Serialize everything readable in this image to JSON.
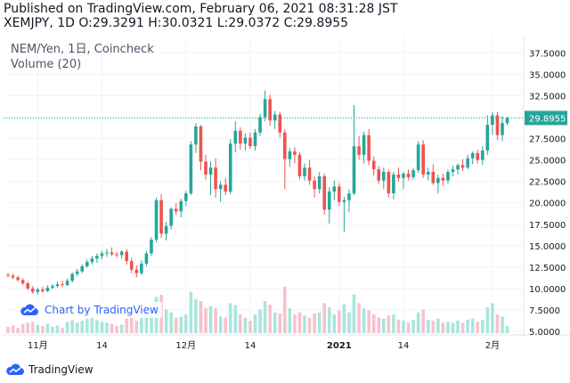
{
  "header": {
    "line1": "Published on TradingView.com, February 06, 2021 08:31:28 JST",
    "line2": "XEMJPY, 1D O:29.3291 H:30.0321 L:29.0372 C:29.8955"
  },
  "legend": {
    "title": "NEM/Yen, 1日, Coincheck",
    "volume": "Volume (20)"
  },
  "watermark": {
    "text": "Chart by TradingView"
  },
  "footer": {
    "brand": "TradingView"
  },
  "colors": {
    "up": "#26a69a",
    "down": "#ef5350",
    "upVol": "#a8e6dd",
    "downVol": "#f7c2cc",
    "lastLine": "#26a69a"
  },
  "chart_data": {
    "type": "candlestick",
    "title": "NEM/Yen, 1日, Coincheck",
    "ylim": [
      4.8,
      39.5
    ],
    "y_ticks": [
      "37.5000",
      "35.0000",
      "32.5000",
      "30.0000",
      "27.5000",
      "25.0000",
      "22.5000",
      "20.0000",
      "17.5000",
      "15.0000",
      "12.5000",
      "10.0000",
      "7.5000",
      "5.0000"
    ],
    "x_labels": [
      {
        "label": "11月",
        "index": 6
      },
      {
        "label": "14",
        "index": 19
      },
      {
        "label": "12月",
        "index": 36
      },
      {
        "label": "14",
        "index": 49
      },
      {
        "label": "2021",
        "index": 67
      },
      {
        "label": "14",
        "index": 80
      },
      {
        "label": "2月",
        "index": 98
      }
    ],
    "last_price": "29.8955",
    "last_value": 29.8955,
    "candles": [
      [
        11.6,
        11.8,
        11.3,
        11.5,
        0.12
      ],
      [
        11.5,
        11.7,
        11.1,
        11.3,
        0.15
      ],
      [
        11.3,
        11.5,
        10.8,
        11.0,
        0.1
      ],
      [
        11.0,
        11.2,
        10.4,
        10.6,
        0.18
      ],
      [
        10.6,
        10.8,
        9.8,
        10.0,
        0.2
      ],
      [
        10.0,
        10.3,
        9.4,
        9.6,
        0.22
      ],
      [
        9.6,
        10.1,
        9.3,
        9.9,
        0.16
      ],
      [
        9.9,
        10.2,
        9.5,
        9.7,
        0.14
      ],
      [
        9.7,
        10.4,
        9.6,
        10.1,
        0.18
      ],
      [
        10.1,
        10.5,
        9.9,
        10.3,
        0.12
      ],
      [
        10.3,
        10.8,
        10.1,
        10.5,
        0.15
      ],
      [
        10.5,
        10.9,
        10.2,
        10.4,
        0.1
      ],
      [
        10.4,
        11.2,
        10.3,
        10.9,
        0.22
      ],
      [
        10.9,
        11.9,
        10.7,
        11.7,
        0.25
      ],
      [
        11.7,
        12.3,
        11.4,
        12.0,
        0.2
      ],
      [
        12.0,
        12.8,
        11.8,
        12.6,
        0.24
      ],
      [
        12.6,
        13.4,
        12.4,
        13.1,
        0.28
      ],
      [
        13.1,
        13.8,
        12.8,
        13.5,
        0.3
      ],
      [
        13.5,
        14.1,
        13.0,
        13.8,
        0.25
      ],
      [
        13.8,
        14.4,
        13.4,
        14.1,
        0.22
      ],
      [
        14.1,
        14.6,
        13.7,
        14.2,
        0.2
      ],
      [
        14.2,
        14.8,
        13.8,
        14.0,
        0.18
      ],
      [
        14.0,
        14.3,
        13.6,
        13.9,
        0.14
      ],
      [
        13.9,
        14.5,
        13.5,
        14.3,
        0.16
      ],
      [
        14.3,
        14.6,
        12.8,
        13.2,
        0.28
      ],
      [
        13.2,
        13.6,
        11.8,
        12.2,
        0.32
      ],
      [
        12.2,
        12.7,
        11.3,
        11.8,
        0.24
      ],
      [
        11.8,
        13.3,
        11.6,
        12.9,
        0.3
      ],
      [
        12.9,
        14.4,
        12.6,
        14.1,
        0.38
      ],
      [
        14.1,
        16.0,
        13.8,
        15.7,
        0.48
      ],
      [
        15.7,
        20.6,
        15.4,
        20.3,
        0.7
      ],
      [
        20.3,
        21.0,
        15.9,
        16.4,
        0.74
      ],
      [
        16.4,
        17.8,
        15.6,
        17.3,
        0.46
      ],
      [
        17.3,
        19.5,
        16.9,
        19.3,
        0.4
      ],
      [
        19.3,
        20.0,
        18.6,
        19.0,
        0.3
      ],
      [
        19.0,
        20.5,
        18.3,
        20.2,
        0.32
      ],
      [
        20.2,
        21.4,
        19.6,
        21.1,
        0.36
      ],
      [
        21.1,
        27.2,
        20.9,
        26.8,
        0.8
      ],
      [
        26.8,
        29.3,
        25.8,
        28.9,
        0.66
      ],
      [
        28.9,
        29.1,
        23.8,
        24.8,
        0.62
      ],
      [
        24.8,
        25.6,
        22.7,
        23.3,
        0.48
      ],
      [
        23.3,
        24.8,
        20.9,
        24.1,
        0.52
      ],
      [
        24.1,
        25.2,
        20.6,
        21.6,
        0.48
      ],
      [
        21.6,
        22.5,
        20.1,
        22.1,
        0.32
      ],
      [
        22.1,
        22.9,
        20.9,
        21.3,
        0.3
      ],
      [
        21.3,
        27.4,
        21.0,
        26.9,
        0.58
      ],
      [
        26.9,
        29.5,
        25.9,
        28.4,
        0.54
      ],
      [
        28.4,
        28.8,
        26.2,
        26.9,
        0.36
      ],
      [
        26.9,
        28.1,
        26.1,
        27.6,
        0.3
      ],
      [
        27.6,
        28.2,
        26.3,
        26.6,
        0.24
      ],
      [
        26.6,
        28.6,
        26.1,
        28.2,
        0.36
      ],
      [
        28.2,
        30.4,
        27.8,
        30.0,
        0.46
      ],
      [
        30.0,
        33.1,
        29.5,
        32.1,
        0.62
      ],
      [
        32.1,
        32.6,
        29.0,
        29.6,
        0.55
      ],
      [
        29.6,
        30.7,
        28.6,
        30.3,
        0.4
      ],
      [
        30.3,
        30.6,
        27.6,
        28.2,
        0.38
      ],
      [
        28.2,
        28.6,
        21.6,
        25.1,
        0.9
      ],
      [
        25.1,
        26.4,
        24.2,
        26.0,
        0.48
      ],
      [
        26.0,
        26.5,
        24.6,
        25.6,
        0.36
      ],
      [
        25.6,
        25.9,
        22.7,
        23.1,
        0.4
      ],
      [
        23.1,
        24.6,
        22.6,
        24.1,
        0.34
      ],
      [
        24.1,
        25.0,
        22.1,
        22.6,
        0.3
      ],
      [
        22.6,
        23.1,
        20.6,
        21.6,
        0.38
      ],
      [
        21.6,
        23.6,
        21.1,
        23.1,
        0.4
      ],
      [
        23.1,
        23.4,
        18.6,
        19.2,
        0.58
      ],
      [
        19.2,
        21.8,
        17.6,
        21.3,
        0.5
      ],
      [
        21.3,
        22.6,
        20.3,
        21.9,
        0.36
      ],
      [
        21.9,
        22.3,
        19.6,
        20.1,
        0.44
      ],
      [
        20.1,
        20.7,
        16.6,
        20.3,
        0.56
      ],
      [
        20.3,
        21.6,
        18.9,
        21.1,
        0.4
      ],
      [
        21.1,
        31.4,
        20.9,
        26.6,
        0.75
      ],
      [
        26.6,
        27.8,
        25.0,
        25.6,
        0.58
      ],
      [
        25.6,
        28.3,
        24.6,
        27.9,
        0.48
      ],
      [
        27.9,
        28.6,
        24.4,
        24.9,
        0.44
      ],
      [
        24.9,
        25.4,
        23.2,
        23.9,
        0.36
      ],
      [
        23.9,
        24.3,
        22.2,
        22.6,
        0.3
      ],
      [
        22.6,
        24.1,
        21.6,
        23.6,
        0.28
      ],
      [
        23.6,
        23.9,
        20.6,
        21.1,
        0.34
      ],
      [
        21.1,
        23.6,
        20.4,
        23.3,
        0.36
      ],
      [
        23.3,
        24.1,
        22.5,
        22.9,
        0.26
      ],
      [
        22.9,
        23.6,
        21.6,
        23.4,
        0.24
      ],
      [
        23.4,
        23.9,
        22.6,
        23.0,
        0.2
      ],
      [
        23.0,
        24.1,
        22.7,
        23.8,
        0.26
      ],
      [
        23.8,
        27.2,
        23.5,
        26.8,
        0.4
      ],
      [
        26.8,
        27.3,
        22.9,
        23.3,
        0.46
      ],
      [
        23.3,
        24.1,
        22.6,
        23.6,
        0.26
      ],
      [
        23.6,
        24.5,
        22.1,
        22.3,
        0.24
      ],
      [
        22.3,
        23.3,
        21.1,
        22.9,
        0.28
      ],
      [
        22.9,
        23.4,
        22.0,
        22.6,
        0.2
      ],
      [
        22.6,
        23.9,
        22.2,
        23.6,
        0.22
      ],
      [
        23.6,
        24.3,
        23.1,
        23.9,
        0.2
      ],
      [
        23.9,
        24.6,
        23.3,
        24.4,
        0.24
      ],
      [
        24.4,
        25.1,
        23.7,
        24.1,
        0.2
      ],
      [
        24.1,
        25.6,
        23.9,
        25.2,
        0.26
      ],
      [
        25.2,
        26.0,
        24.5,
        25.8,
        0.28
      ],
      [
        25.8,
        26.2,
        24.6,
        25.0,
        0.22
      ],
      [
        25.0,
        26.6,
        24.4,
        26.1,
        0.26
      ],
      [
        26.1,
        30.2,
        25.6,
        29.1,
        0.5
      ],
      [
        29.1,
        30.6,
        27.9,
        30.2,
        0.58
      ],
      [
        30.2,
        30.6,
        27.3,
        27.9,
        0.36
      ],
      [
        27.9,
        30.1,
        27.2,
        29.3,
        0.32
      ],
      [
        29.3,
        30.0321,
        29.0372,
        29.8955,
        0.14
      ]
    ]
  }
}
